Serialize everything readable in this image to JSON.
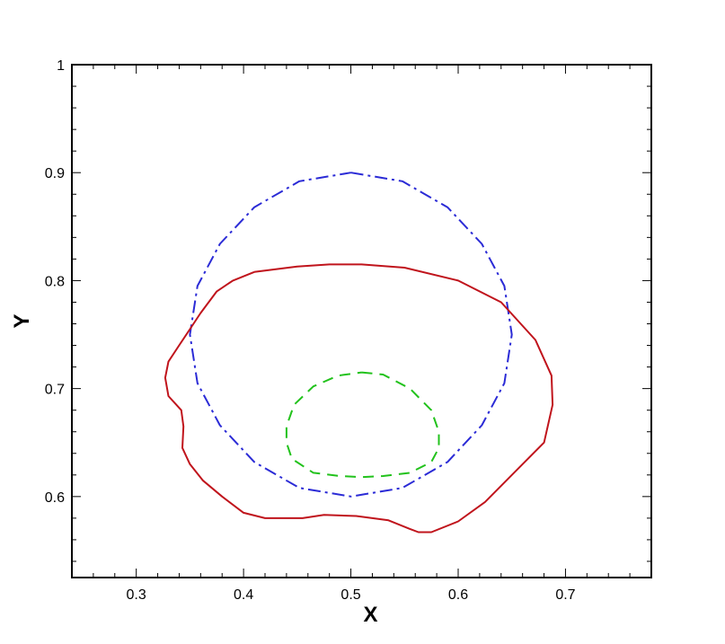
{
  "chart_data": {
    "type": "line",
    "title": "",
    "xlabel": "X",
    "ylabel": "Y",
    "xlim": [
      0.24,
      0.78
    ],
    "ylim": [
      0.525,
      1.0
    ],
    "x_ticks": [
      "0.3",
      "0.4",
      "0.5",
      "0.6",
      "0.7"
    ],
    "y_ticks": [
      "0.6",
      "0.7",
      "0.8",
      "0.9",
      "1"
    ],
    "grid": false,
    "legend": "none",
    "series": [
      {
        "style": "dashdot",
        "color": "#2b2bd6",
        "x": [
          0.5,
          0.548,
          0.59,
          0.622,
          0.643,
          0.65,
          0.643,
          0.622,
          0.59,
          0.548,
          0.5,
          0.452,
          0.41,
          0.378,
          0.357,
          0.35,
          0.357,
          0.378,
          0.41,
          0.452,
          0.5
        ],
        "y": [
          0.9,
          0.892,
          0.868,
          0.834,
          0.795,
          0.75,
          0.705,
          0.666,
          0.632,
          0.608,
          0.6,
          0.608,
          0.632,
          0.666,
          0.705,
          0.75,
          0.795,
          0.834,
          0.868,
          0.892,
          0.9
        ]
      },
      {
        "style": "solid",
        "color": "#c0141c",
        "x": [
          0.41,
          0.45,
          0.48,
          0.51,
          0.55,
          0.6,
          0.64,
          0.672,
          0.687,
          0.688,
          0.68,
          0.655,
          0.625,
          0.6,
          0.575,
          0.563,
          0.555,
          0.535,
          0.505,
          0.475,
          0.455,
          0.42,
          0.4,
          0.38,
          0.362,
          0.35,
          0.343,
          0.344,
          0.342,
          0.33,
          0.327,
          0.33,
          0.34,
          0.35,
          0.36,
          0.375,
          0.39,
          0.41
        ],
        "y": [
          0.808,
          0.813,
          0.815,
          0.815,
          0.812,
          0.8,
          0.78,
          0.745,
          0.712,
          0.685,
          0.65,
          0.625,
          0.595,
          0.577,
          0.567,
          0.567,
          0.57,
          0.578,
          0.582,
          0.583,
          0.58,
          0.58,
          0.585,
          0.6,
          0.615,
          0.63,
          0.645,
          0.665,
          0.68,
          0.693,
          0.71,
          0.725,
          0.74,
          0.755,
          0.77,
          0.79,
          0.8,
          0.808
        ]
      },
      {
        "style": "dashed",
        "color": "#22c21c",
        "x": [
          0.51,
          0.53,
          0.555,
          0.575,
          0.582,
          0.582,
          0.575,
          0.555,
          0.53,
          0.51,
          0.49,
          0.465,
          0.445,
          0.44,
          0.44,
          0.447,
          0.465,
          0.488,
          0.51
        ],
        "y": [
          0.715,
          0.713,
          0.7,
          0.68,
          0.66,
          0.645,
          0.632,
          0.622,
          0.619,
          0.618,
          0.619,
          0.622,
          0.635,
          0.65,
          0.665,
          0.685,
          0.702,
          0.712,
          0.715
        ]
      }
    ]
  }
}
